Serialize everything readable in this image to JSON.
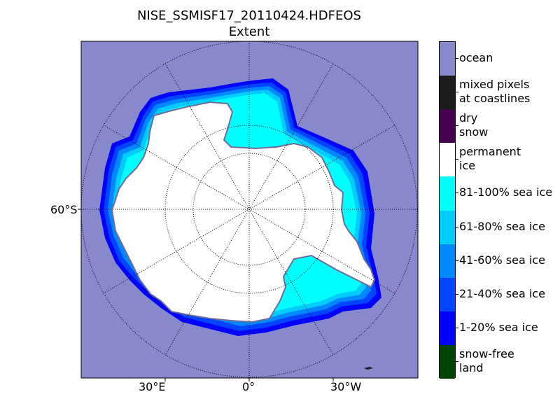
{
  "title_line1": "NISE_SSMISF17_20110424.HDFEOS",
  "title_line2": "Extent",
  "axis_labels": {
    "lat_left": "60°S",
    "lon_bottom_left": "30°E",
    "lon_bottom_center": "0°",
    "lon_bottom_right": "30°W"
  },
  "colors": {
    "ocean": "#8789cc",
    "permanent_ice": "#ffffff",
    "ice_81_100": "#00ffff",
    "ice_61_80": "#00ccff",
    "ice_41_60": "#0088ff",
    "ice_21_40": "#0044ff",
    "ice_1_20": "#0000ff",
    "coast": "#6d6d99"
  },
  "legend": [
    {
      "label": "ocean",
      "color": "#8789cc"
    },
    {
      "label": "mixed pixels\nat coastlines",
      "color": "#1b1b1b"
    },
    {
      "label": "dry\nsnow",
      "color": "#46004f"
    },
    {
      "label": "permanent\nice",
      "color": "#ffffff"
    },
    {
      "label": "81-100% sea ice",
      "color": "#00ffff"
    },
    {
      "label": "61-80% sea ice",
      "color": "#00ccff"
    },
    {
      "label": "41-60% sea ice",
      "color": "#0088ff"
    },
    {
      "label": "21-40% sea ice",
      "color": "#0044ff"
    },
    {
      "label": "1-20% sea ice",
      "color": "#0000ff"
    },
    {
      "label": "snow-free\nland",
      "color": "#004400"
    }
  ]
}
